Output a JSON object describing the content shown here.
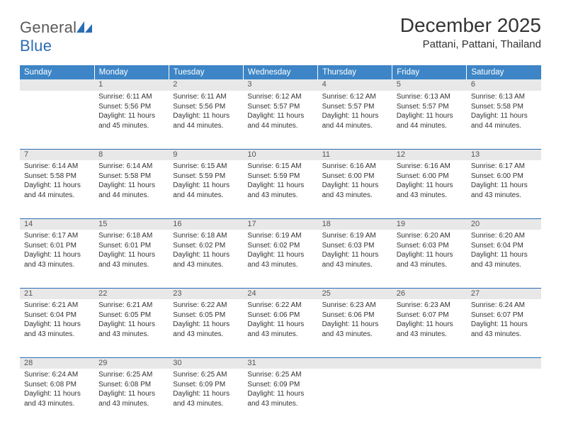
{
  "brand": {
    "name_part1": "General",
    "name_part2": "Blue"
  },
  "title": "December 2025",
  "location": "Pattani, Pattani, Thailand",
  "colors": {
    "header_bg": "#3d85c6",
    "header_text": "#ffffff",
    "daynum_bg": "#e8e8e8",
    "row_divider": "#2a6db5",
    "brand_gray": "#5a5a5a",
    "brand_blue": "#2a6db5"
  },
  "fonts": {
    "title_pt": 28,
    "location_pt": 15,
    "weekday_pt": 11.5,
    "body_pt": 10
  },
  "weekdays": [
    "Sunday",
    "Monday",
    "Tuesday",
    "Wednesday",
    "Thursday",
    "Friday",
    "Saturday"
  ],
  "weeks": [
    {
      "nums": [
        "",
        "1",
        "2",
        "3",
        "4",
        "5",
        "6"
      ],
      "cells": [
        {
          "l1": "",
          "l2": "",
          "l3": "",
          "l4": ""
        },
        {
          "l1": "Sunrise: 6:11 AM",
          "l2": "Sunset: 5:56 PM",
          "l3": "Daylight: 11 hours",
          "l4": "and 45 minutes."
        },
        {
          "l1": "Sunrise: 6:11 AM",
          "l2": "Sunset: 5:56 PM",
          "l3": "Daylight: 11 hours",
          "l4": "and 44 minutes."
        },
        {
          "l1": "Sunrise: 6:12 AM",
          "l2": "Sunset: 5:57 PM",
          "l3": "Daylight: 11 hours",
          "l4": "and 44 minutes."
        },
        {
          "l1": "Sunrise: 6:12 AM",
          "l2": "Sunset: 5:57 PM",
          "l3": "Daylight: 11 hours",
          "l4": "and 44 minutes."
        },
        {
          "l1": "Sunrise: 6:13 AM",
          "l2": "Sunset: 5:57 PM",
          "l3": "Daylight: 11 hours",
          "l4": "and 44 minutes."
        },
        {
          "l1": "Sunrise: 6:13 AM",
          "l2": "Sunset: 5:58 PM",
          "l3": "Daylight: 11 hours",
          "l4": "and 44 minutes."
        }
      ]
    },
    {
      "nums": [
        "7",
        "8",
        "9",
        "10",
        "11",
        "12",
        "13"
      ],
      "cells": [
        {
          "l1": "Sunrise: 6:14 AM",
          "l2": "Sunset: 5:58 PM",
          "l3": "Daylight: 11 hours",
          "l4": "and 44 minutes."
        },
        {
          "l1": "Sunrise: 6:14 AM",
          "l2": "Sunset: 5:58 PM",
          "l3": "Daylight: 11 hours",
          "l4": "and 44 minutes."
        },
        {
          "l1": "Sunrise: 6:15 AM",
          "l2": "Sunset: 5:59 PM",
          "l3": "Daylight: 11 hours",
          "l4": "and 44 minutes."
        },
        {
          "l1": "Sunrise: 6:15 AM",
          "l2": "Sunset: 5:59 PM",
          "l3": "Daylight: 11 hours",
          "l4": "and 43 minutes."
        },
        {
          "l1": "Sunrise: 6:16 AM",
          "l2": "Sunset: 6:00 PM",
          "l3": "Daylight: 11 hours",
          "l4": "and 43 minutes."
        },
        {
          "l1": "Sunrise: 6:16 AM",
          "l2": "Sunset: 6:00 PM",
          "l3": "Daylight: 11 hours",
          "l4": "and 43 minutes."
        },
        {
          "l1": "Sunrise: 6:17 AM",
          "l2": "Sunset: 6:00 PM",
          "l3": "Daylight: 11 hours",
          "l4": "and 43 minutes."
        }
      ]
    },
    {
      "nums": [
        "14",
        "15",
        "16",
        "17",
        "18",
        "19",
        "20"
      ],
      "cells": [
        {
          "l1": "Sunrise: 6:17 AM",
          "l2": "Sunset: 6:01 PM",
          "l3": "Daylight: 11 hours",
          "l4": "and 43 minutes."
        },
        {
          "l1": "Sunrise: 6:18 AM",
          "l2": "Sunset: 6:01 PM",
          "l3": "Daylight: 11 hours",
          "l4": "and 43 minutes."
        },
        {
          "l1": "Sunrise: 6:18 AM",
          "l2": "Sunset: 6:02 PM",
          "l3": "Daylight: 11 hours",
          "l4": "and 43 minutes."
        },
        {
          "l1": "Sunrise: 6:19 AM",
          "l2": "Sunset: 6:02 PM",
          "l3": "Daylight: 11 hours",
          "l4": "and 43 minutes."
        },
        {
          "l1": "Sunrise: 6:19 AM",
          "l2": "Sunset: 6:03 PM",
          "l3": "Daylight: 11 hours",
          "l4": "and 43 minutes."
        },
        {
          "l1": "Sunrise: 6:20 AM",
          "l2": "Sunset: 6:03 PM",
          "l3": "Daylight: 11 hours",
          "l4": "and 43 minutes."
        },
        {
          "l1": "Sunrise: 6:20 AM",
          "l2": "Sunset: 6:04 PM",
          "l3": "Daylight: 11 hours",
          "l4": "and 43 minutes."
        }
      ]
    },
    {
      "nums": [
        "21",
        "22",
        "23",
        "24",
        "25",
        "26",
        "27"
      ],
      "cells": [
        {
          "l1": "Sunrise: 6:21 AM",
          "l2": "Sunset: 6:04 PM",
          "l3": "Daylight: 11 hours",
          "l4": "and 43 minutes."
        },
        {
          "l1": "Sunrise: 6:21 AM",
          "l2": "Sunset: 6:05 PM",
          "l3": "Daylight: 11 hours",
          "l4": "and 43 minutes."
        },
        {
          "l1": "Sunrise: 6:22 AM",
          "l2": "Sunset: 6:05 PM",
          "l3": "Daylight: 11 hours",
          "l4": "and 43 minutes."
        },
        {
          "l1": "Sunrise: 6:22 AM",
          "l2": "Sunset: 6:06 PM",
          "l3": "Daylight: 11 hours",
          "l4": "and 43 minutes."
        },
        {
          "l1": "Sunrise: 6:23 AM",
          "l2": "Sunset: 6:06 PM",
          "l3": "Daylight: 11 hours",
          "l4": "and 43 minutes."
        },
        {
          "l1": "Sunrise: 6:23 AM",
          "l2": "Sunset: 6:07 PM",
          "l3": "Daylight: 11 hours",
          "l4": "and 43 minutes."
        },
        {
          "l1": "Sunrise: 6:24 AM",
          "l2": "Sunset: 6:07 PM",
          "l3": "Daylight: 11 hours",
          "l4": "and 43 minutes."
        }
      ]
    },
    {
      "nums": [
        "28",
        "29",
        "30",
        "31",
        "",
        "",
        ""
      ],
      "cells": [
        {
          "l1": "Sunrise: 6:24 AM",
          "l2": "Sunset: 6:08 PM",
          "l3": "Daylight: 11 hours",
          "l4": "and 43 minutes."
        },
        {
          "l1": "Sunrise: 6:25 AM",
          "l2": "Sunset: 6:08 PM",
          "l3": "Daylight: 11 hours",
          "l4": "and 43 minutes."
        },
        {
          "l1": "Sunrise: 6:25 AM",
          "l2": "Sunset: 6:09 PM",
          "l3": "Daylight: 11 hours",
          "l4": "and 43 minutes."
        },
        {
          "l1": "Sunrise: 6:25 AM",
          "l2": "Sunset: 6:09 PM",
          "l3": "Daylight: 11 hours",
          "l4": "and 43 minutes."
        },
        {
          "l1": "",
          "l2": "",
          "l3": "",
          "l4": ""
        },
        {
          "l1": "",
          "l2": "",
          "l3": "",
          "l4": ""
        },
        {
          "l1": "",
          "l2": "",
          "l3": "",
          "l4": ""
        }
      ]
    }
  ]
}
